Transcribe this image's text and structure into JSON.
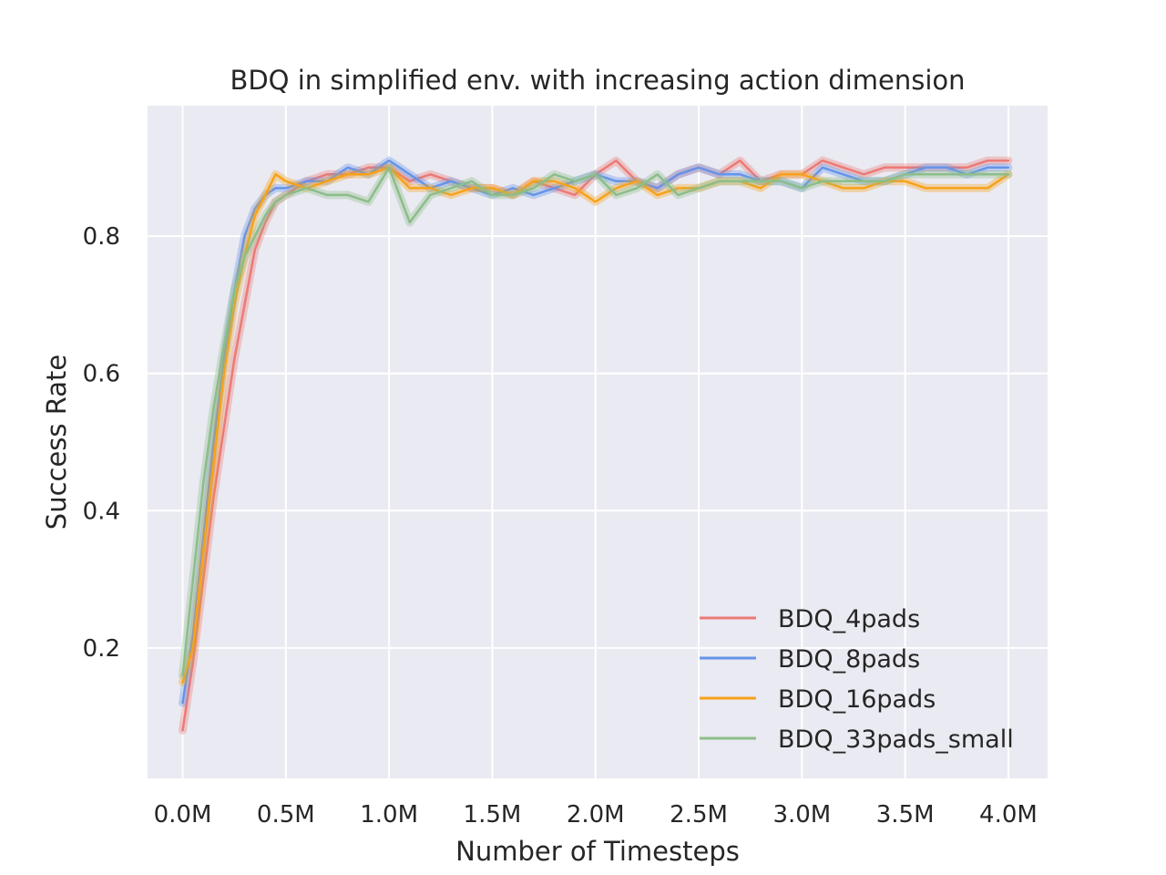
{
  "chart_data": {
    "type": "line",
    "title": "BDQ in simplified env. with increasing action dimension",
    "xlabel": "Number of Timesteps",
    "ylabel": "Success Rate",
    "xlim": [
      -0.17,
      4.19
    ],
    "ylim": [
      0.01,
      0.99
    ],
    "x_ticks": [
      0,
      0.5,
      1.0,
      1.5,
      2.0,
      2.5,
      3.0,
      3.5,
      4.0
    ],
    "x_tick_labels": [
      "0.0M",
      "0.5M",
      "1.0M",
      "1.5M",
      "2.0M",
      "2.5M",
      "3.0M",
      "3.5M",
      "4.0M"
    ],
    "y_ticks": [
      0.2,
      0.4,
      0.6,
      0.8
    ],
    "y_tick_labels": [
      "0.2",
      "0.4",
      "0.6",
      "0.8"
    ],
    "grid": true,
    "legend_position": "lower-right",
    "background": "#eaeaf2",
    "x": [
      0.0,
      0.05,
      0.1,
      0.15,
      0.2,
      0.25,
      0.3,
      0.35,
      0.4,
      0.45,
      0.5,
      0.6,
      0.7,
      0.8,
      0.9,
      1.0,
      1.1,
      1.2,
      1.3,
      1.4,
      1.5,
      1.6,
      1.7,
      1.8,
      1.9,
      2.0,
      2.1,
      2.2,
      2.3,
      2.4,
      2.5,
      2.6,
      2.7,
      2.8,
      2.9,
      3.0,
      3.1,
      3.2,
      3.3,
      3.4,
      3.5,
      3.6,
      3.7,
      3.8,
      3.9,
      4.0
    ],
    "series": [
      {
        "name": "BDQ_4pads",
        "color": "#ec7a76",
        "values": [
          0.08,
          0.18,
          0.3,
          0.42,
          0.52,
          0.62,
          0.7,
          0.78,
          0.82,
          0.85,
          0.86,
          0.88,
          0.89,
          0.89,
          0.9,
          0.9,
          0.88,
          0.89,
          0.88,
          0.87,
          0.87,
          0.86,
          0.88,
          0.87,
          0.86,
          0.89,
          0.91,
          0.88,
          0.87,
          0.89,
          0.9,
          0.89,
          0.91,
          0.88,
          0.89,
          0.89,
          0.91,
          0.9,
          0.89,
          0.9,
          0.9,
          0.9,
          0.9,
          0.9,
          0.91,
          0.91
        ]
      },
      {
        "name": "BDQ_8pads",
        "color": "#6694e9",
        "values": [
          0.12,
          0.22,
          0.36,
          0.5,
          0.62,
          0.72,
          0.8,
          0.84,
          0.86,
          0.87,
          0.87,
          0.88,
          0.88,
          0.9,
          0.89,
          0.91,
          0.89,
          0.87,
          0.88,
          0.87,
          0.86,
          0.87,
          0.86,
          0.87,
          0.88,
          0.89,
          0.88,
          0.88,
          0.87,
          0.89,
          0.9,
          0.89,
          0.89,
          0.88,
          0.88,
          0.87,
          0.9,
          0.89,
          0.88,
          0.88,
          0.89,
          0.9,
          0.9,
          0.89,
          0.9,
          0.9
        ]
      },
      {
        "name": "BDQ_16pads",
        "color": "#f7a21b",
        "values": [
          0.15,
          0.2,
          0.34,
          0.47,
          0.6,
          0.7,
          0.77,
          0.83,
          0.86,
          0.89,
          0.88,
          0.87,
          0.88,
          0.89,
          0.89,
          0.9,
          0.87,
          0.87,
          0.86,
          0.87,
          0.87,
          0.86,
          0.88,
          0.88,
          0.87,
          0.85,
          0.87,
          0.88,
          0.86,
          0.87,
          0.87,
          0.88,
          0.88,
          0.87,
          0.89,
          0.89,
          0.88,
          0.87,
          0.87,
          0.88,
          0.88,
          0.87,
          0.87,
          0.87,
          0.87,
          0.89
        ]
      },
      {
        "name": "BDQ_33pads_small",
        "color": "#8dbd8a",
        "values": [
          0.16,
          0.3,
          0.44,
          0.55,
          0.64,
          0.72,
          0.77,
          0.8,
          0.83,
          0.85,
          0.86,
          0.87,
          0.86,
          0.86,
          0.85,
          0.9,
          0.82,
          0.86,
          0.87,
          0.88,
          0.86,
          0.86,
          0.87,
          0.89,
          0.88,
          0.89,
          0.86,
          0.87,
          0.89,
          0.86,
          0.87,
          0.88,
          0.88,
          0.88,
          0.88,
          0.87,
          0.88,
          0.88,
          0.88,
          0.88,
          0.89,
          0.89,
          0.89,
          0.89,
          0.89,
          0.89
        ]
      }
    ]
  }
}
